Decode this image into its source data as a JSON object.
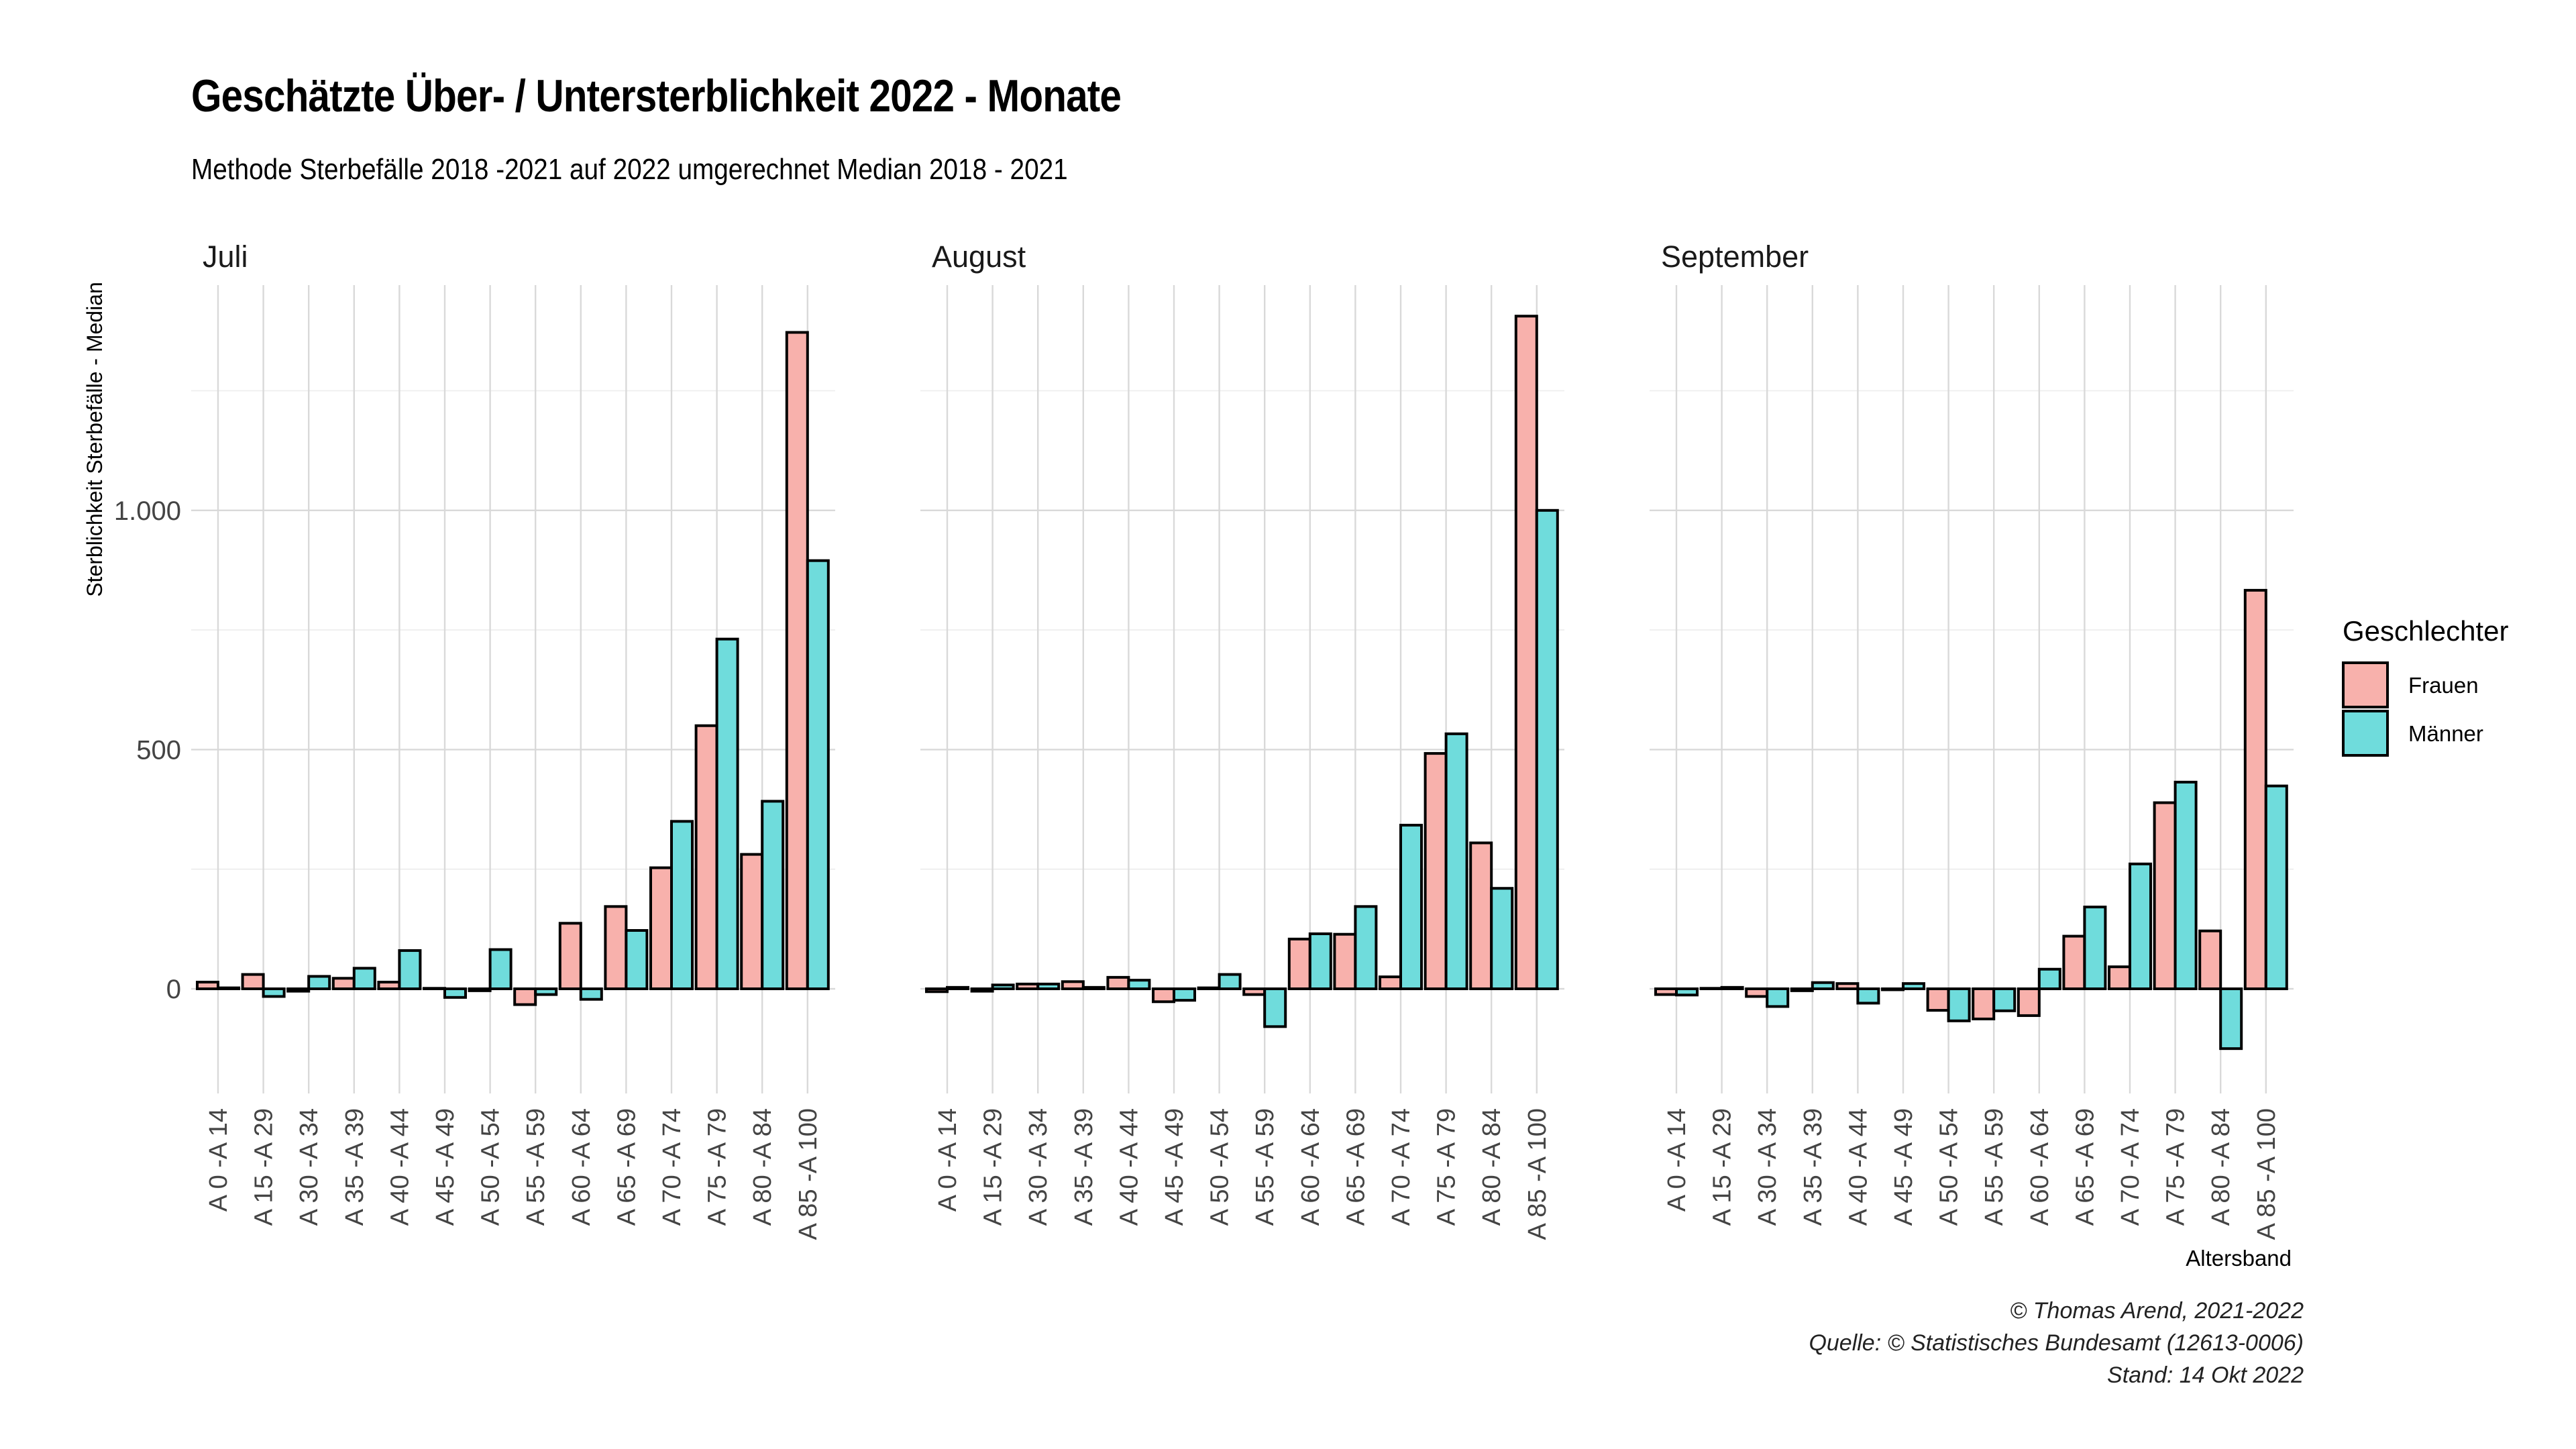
{
  "title": "Geschätzte Über- / Untersterblichkeit 2022 - Monate",
  "subtitle": "Methode Sterbefälle 2018 -2021 auf 2022 umgerechnet Median 2018 - 2021",
  "caption": {
    "line1": "© Thomas Arend, 2021-2022",
    "line2": "Quelle: © Statistisches Bundesamt (12613-0006)",
    "line3": "Stand: 14 Okt 2022"
  },
  "chart_data": {
    "type": "bar",
    "facet_by": "Monat",
    "ylabel": "Sterblichkeit Sterbefälle - Median",
    "xlabel": "Altersband",
    "ylim": [
      -200,
      1450
    ],
    "yticks": [
      0,
      500,
      1000
    ],
    "ytick_labels": [
      "0",
      "500",
      "1.000"
    ],
    "grid": true,
    "legend": {
      "title": "Geschlechter",
      "position": "right",
      "entries": [
        "Frauen",
        "Männer"
      ]
    },
    "colors": {
      "Frauen": "#F8B1AC",
      "Männer": "#6FDCDC",
      "outline": "#000000"
    },
    "categories": [
      "A 0 -A 14",
      "A 15 -A 29",
      "A 30 -A 34",
      "A 35 -A 39",
      "A 40 -A 44",
      "A 45 -A 49",
      "A 50 -A 54",
      "A 55 -A 59",
      "A 60 -A 64",
      "A 65 -A 69",
      "A 70 -A 74",
      "A 75 -A 79",
      "A 80 -A 84",
      "A 85 -A 100"
    ],
    "facets": [
      {
        "label": "Juli",
        "series": [
          {
            "name": "Frauen",
            "values": [
              14,
              30,
              -5,
              22,
              14,
              1,
              -4,
              -33,
              137,
              172,
              253,
              550,
              281,
              1372
            ]
          },
          {
            "name": "Männer",
            "values": [
              2,
              -16,
              26,
              43,
              80,
              -18,
              82,
              -12,
              -22,
              122,
              350,
              731,
              392,
              895
            ]
          }
        ]
      },
      {
        "label": "August",
        "series": [
          {
            "name": "Frauen",
            "values": [
              -6,
              -5,
              10,
              15,
              24,
              -27,
              2,
              -12,
              104,
              114,
              25,
              492,
              305,
              1406
            ]
          },
          {
            "name": "Männer",
            "values": [
              3,
              8,
              10,
              3,
              18,
              -24,
              30,
              -79,
              115,
              172,
              342,
              533,
              210,
              1000
            ]
          }
        ]
      },
      {
        "label": "September",
        "series": [
          {
            "name": "Frauen",
            "values": [
              -12,
              1,
              -16,
              -4,
              11,
              -2,
              -45,
              -63,
              -56,
              110,
              46,
              389,
              121,
              833
            ]
          },
          {
            "name": "Männer",
            "values": [
              -13,
              3,
              -37,
              13,
              -30,
              11,
              -67,
              -46,
              41,
              171,
              261,
              432,
              -125,
              424
            ]
          }
        ]
      }
    ]
  }
}
